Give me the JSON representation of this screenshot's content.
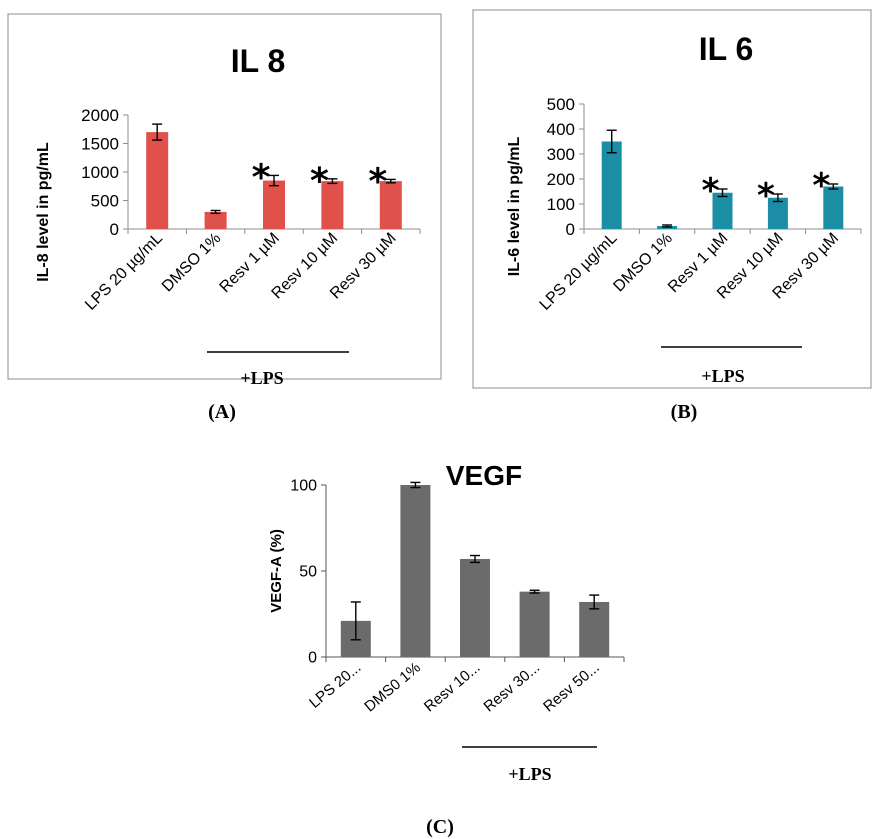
{
  "chart_data": [
    {
      "panel_label": "(A)",
      "type": "bar",
      "title": "IL 8",
      "ylabel": "IL-8 level in pg/mL",
      "categories": [
        "LPS 20 µg/mL",
        "DMSO 1%",
        "Resv 1 µM",
        "Resv 10 µM",
        "Resv 30 µM"
      ],
      "values": [
        1700,
        300,
        850,
        840,
        840
      ],
      "errors": [
        140,
        25,
        90,
        40,
        30
      ],
      "significant": [
        false,
        false,
        true,
        true,
        true
      ],
      "significance_marker": "*",
      "ylim": [
        0,
        2000
      ],
      "yticks": [
        "0",
        "500",
        "1000",
        "1500",
        "2000"
      ],
      "bar_color": "#e0514b",
      "bracket_label": "+LPS",
      "grid": false
    },
    {
      "panel_label": "(B)",
      "type": "bar",
      "title": "IL 6",
      "ylabel": "IL-6 level in pg/mL",
      "categories": [
        "LPS 20 µg/mL",
        "DMSO 1%",
        "Resv 1 µM",
        "Resv 10 µM",
        "Resv 30 µM"
      ],
      "values": [
        350,
        12,
        145,
        125,
        170
      ],
      "errors": [
        45,
        4,
        15,
        15,
        10
      ],
      "significant": [
        false,
        false,
        true,
        true,
        true
      ],
      "significance_marker": "*",
      "ylim": [
        0,
        500
      ],
      "yticks": [
        "0",
        "100",
        "200",
        "300",
        "400",
        "500"
      ],
      "bar_color": "#1b8ea6",
      "bracket_label": "+LPS",
      "grid": false
    },
    {
      "panel_label": "(C)",
      "type": "bar",
      "title": "VEGF",
      "ylabel": "VEGF-A (%)",
      "categories": [
        "LPS 20...",
        "DMS0 1%",
        "Resv 10...",
        "Resv 30...",
        "Resv 50..."
      ],
      "values": [
        21,
        100,
        57,
        38,
        32
      ],
      "errors": [
        11,
        1.5,
        2,
        0.8,
        4
      ],
      "ylim": [
        0,
        100
      ],
      "yticks": [
        "0",
        "50",
        "100"
      ],
      "bar_color": "#6b6b6b",
      "bracket_label": "+LPS",
      "grid": false
    }
  ]
}
